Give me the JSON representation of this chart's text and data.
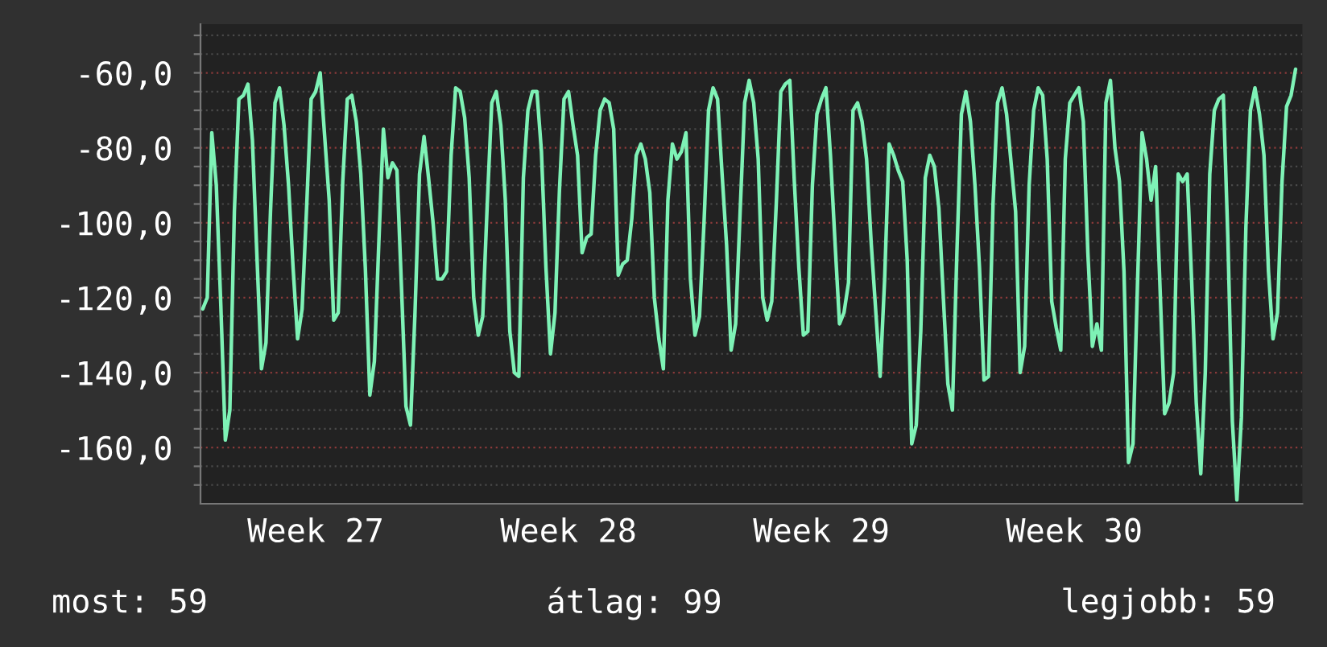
{
  "chart_data": {
    "type": "line",
    "categories": [
      null,
      null,
      null,
      null,
      null,
      null,
      null,
      null,
      null,
      null,
      null,
      null,
      null,
      null,
      null,
      null,
      null,
      null,
      null,
      null,
      null,
      null,
      null,
      null,
      null,
      "Week 27",
      null,
      null,
      null,
      null,
      null,
      null,
      null,
      null,
      null,
      null,
      null,
      null,
      null,
      null,
      null,
      null,
      null,
      null,
      null,
      null,
      null,
      null,
      null,
      null,
      null,
      null,
      null,
      null,
      null,
      null,
      null,
      null,
      null,
      null,
      null,
      null,
      null,
      null,
      null,
      null,
      null,
      null,
      null,
      null,
      null,
      null,
      null,
      null,
      null,
      null,
      null,
      null,
      null,
      null,
      null,
      "Week 28",
      null,
      null,
      null,
      null,
      null,
      null,
      null,
      null,
      null,
      null,
      null,
      null,
      null,
      null,
      null,
      null,
      null,
      null,
      null,
      null,
      null,
      null,
      null,
      null,
      null,
      null,
      null,
      null,
      null,
      null,
      null,
      null,
      null,
      null,
      null,
      null,
      null,
      null,
      null,
      null,
      null,
      null,
      null,
      null,
      null,
      null,
      null,
      null,
      null,
      null,
      null,
      null,
      null,
      null,
      null,
      "Week 29",
      null,
      null,
      null,
      null,
      null,
      null,
      null,
      null,
      null,
      null,
      null,
      null,
      null,
      null,
      null,
      null,
      null,
      null,
      null,
      null,
      null,
      null,
      null,
      null,
      null,
      null,
      null,
      null,
      null,
      null,
      null,
      null,
      null,
      null,
      null,
      null,
      null,
      null,
      null,
      null,
      null,
      null,
      null,
      null,
      null,
      null,
      null,
      null,
      null,
      null,
      null,
      null,
      null,
      null,
      null,
      "Week 30",
      null,
      null,
      null,
      null,
      null,
      null,
      null,
      null,
      null,
      null,
      null,
      null,
      null,
      null,
      null,
      null,
      null,
      null,
      null,
      null,
      null,
      null,
      null,
      null,
      null,
      null,
      null,
      null,
      null,
      null,
      null,
      null,
      null,
      null,
      null,
      null,
      null,
      null,
      null,
      null,
      null,
      null,
      null,
      null,
      null,
      null,
      null,
      null,
      null,
      null
    ],
    "series": [
      {
        "color": "#7ef2b6",
        "values": [
          -123,
          -120,
          -76,
          -90,
          -122,
          -158,
          -150,
          -97,
          -67,
          -66,
          -63,
          -78,
          -109,
          -139,
          -132,
          -97,
          -68,
          -64,
          -74,
          -90,
          -112,
          -131,
          -123,
          -96,
          -67,
          -65,
          -60,
          -77,
          -94,
          -126,
          -124,
          -89,
          -67,
          -66,
          -73,
          -87,
          -112,
          -146,
          -137,
          -105,
          -75,
          -88,
          -84,
          -86,
          -117,
          -149,
          -154,
          -124,
          -87,
          -77,
          -88,
          -100,
          -115,
          -115,
          -113,
          -82,
          -64,
          -65,
          -72,
          -88,
          -120,
          -130,
          -125,
          -95,
          -68,
          -65,
          -74,
          -94,
          -129,
          -140,
          -141,
          -88,
          -70,
          -65,
          -65,
          -81,
          -112,
          -135,
          -124,
          -91,
          -67,
          -65,
          -74,
          -82,
          -108,
          -104,
          -103,
          -82,
          -70,
          -67,
          -68,
          -75,
          -114,
          -111,
          -110,
          -99,
          -82,
          -79,
          -83,
          -92,
          -120,
          -131,
          -139,
          -94,
          -79,
          -83,
          -81,
          -76,
          -115,
          -130,
          -125,
          -100,
          -70,
          -64,
          -67,
          -87,
          -106,
          -134,
          -127,
          -97,
          -68,
          -62,
          -68,
          -83,
          -120,
          -126,
          -121,
          -95,
          -65,
          -63,
          -62,
          -89,
          -112,
          -130,
          -129,
          -90,
          -71,
          -67,
          -64,
          -82,
          -105,
          -127,
          -124,
          -116,
          -70,
          -68,
          -73,
          -83,
          -105,
          -123,
          -141,
          -115,
          -79,
          -82,
          -86,
          -89,
          -110,
          -159,
          -154,
          -129,
          -88,
          -82,
          -85,
          -96,
          -120,
          -143,
          -150,
          -108,
          -71,
          -65,
          -73,
          -90,
          -112,
          -142,
          -141,
          -95,
          -68,
          -64,
          -71,
          -84,
          -97,
          -140,
          -133,
          -90,
          -70,
          -64,
          -66,
          -83,
          -121,
          -128,
          -134,
          -83,
          -68,
          -66,
          -64,
          -73,
          -108,
          -133,
          -127,
          -134,
          -68,
          -62,
          -80,
          -89,
          -113,
          -164,
          -159,
          -116,
          -76,
          -83,
          -94,
          -85,
          -118,
          -151,
          -148,
          -140,
          -87,
          -89,
          -87,
          -116,
          -148,
          -167,
          -140,
          -87,
          -70,
          -67,
          -66,
          -104,
          -153,
          -174,
          -152,
          -101,
          -70,
          -64,
          -71,
          -82,
          -113,
          -131,
          -124,
          -89,
          -69,
          -66,
          -59,
          null
        ]
      }
    ],
    "ylim": [
      -175,
      -47
    ],
    "yticks": [
      {
        "value": -50,
        "label": null
      },
      {
        "value": -55,
        "label": null
      },
      {
        "value": -60,
        "label": "-60,0"
      },
      {
        "value": -65,
        "label": null
      },
      {
        "value": -70,
        "label": null
      },
      {
        "value": -75,
        "label": null
      },
      {
        "value": -80,
        "label": "-80,0"
      },
      {
        "value": -85,
        "label": null
      },
      {
        "value": -90,
        "label": null
      },
      {
        "value": -95,
        "label": null
      },
      {
        "value": -100,
        "label": "-100,0"
      },
      {
        "value": -105,
        "label": null
      },
      {
        "value": -110,
        "label": null
      },
      {
        "value": -115,
        "label": null
      },
      {
        "value": -120,
        "label": "-120,0"
      },
      {
        "value": -125,
        "label": null
      },
      {
        "value": -130,
        "label": null
      },
      {
        "value": -135,
        "label": null
      },
      {
        "value": -140,
        "label": "-140,0"
      },
      {
        "value": -145,
        "label": null
      },
      {
        "value": -150,
        "label": null
      },
      {
        "value": -155,
        "label": null
      },
      {
        "value": -160,
        "label": "-160,0"
      },
      {
        "value": -165,
        "label": null
      },
      {
        "value": -170,
        "label": null
      }
    ],
    "grid": "y",
    "annotations": [
      "most: 59",
      "átlag: 99",
      "legjobb: 59"
    ]
  }
}
